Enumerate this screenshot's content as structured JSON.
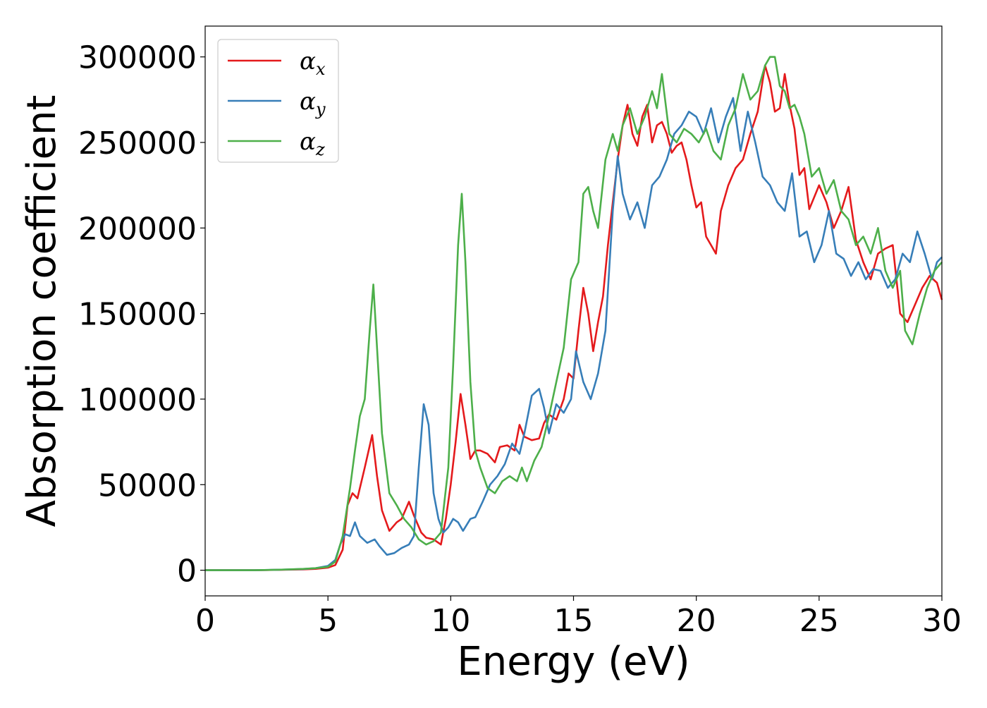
{
  "chart_data": {
    "type": "line",
    "xlabel": "Energy (eV)",
    "ylabel": "Absorption coefficient",
    "xlim": [
      0,
      30
    ],
    "ylim": [
      -15000,
      318000
    ],
    "xticks": [
      0,
      5,
      10,
      15,
      20,
      25,
      30
    ],
    "xtick_labels": [
      "0",
      "5",
      "10",
      "15",
      "20",
      "25",
      "30"
    ],
    "yticks": [
      0,
      50000,
      100000,
      150000,
      200000,
      250000,
      300000
    ],
    "ytick_labels": [
      "0",
      "50000",
      "100000",
      "150000",
      "200000",
      "250000",
      "300000"
    ],
    "grid": false,
    "legend_position": "upper-left",
    "series": [
      {
        "name": "α",
        "subscript": "x",
        "color": "#e41a1c",
        "x": [
          0,
          1,
          2,
          3,
          4,
          4.5,
          5,
          5.3,
          5.6,
          5.8,
          6.0,
          6.2,
          6.5,
          6.8,
          7.0,
          7.2,
          7.5,
          7.8,
          8.0,
          8.3,
          8.5,
          8.8,
          9.0,
          9.3,
          9.6,
          9.8,
          10.0,
          10.2,
          10.4,
          10.6,
          10.8,
          11.0,
          11.2,
          11.5,
          11.8,
          12.0,
          12.3,
          12.6,
          12.8,
          13.0,
          13.3,
          13.6,
          13.8,
          14.0,
          14.3,
          14.6,
          14.8,
          15.0,
          15.2,
          15.4,
          15.6,
          15.8,
          16.0,
          16.2,
          16.4,
          16.6,
          16.8,
          17.0,
          17.2,
          17.4,
          17.6,
          17.8,
          18.0,
          18.2,
          18.4,
          18.6,
          18.8,
          19.0,
          19.2,
          19.4,
          19.6,
          19.8,
          20.0,
          20.2,
          20.4,
          20.6,
          20.8,
          21.0,
          21.3,
          21.6,
          21.9,
          22.2,
          22.5,
          22.8,
          23.0,
          23.2,
          23.4,
          23.6,
          23.8,
          24.0,
          24.2,
          24.4,
          24.6,
          24.8,
          25.0,
          25.3,
          25.6,
          25.9,
          26.2,
          26.5,
          26.8,
          27.1,
          27.4,
          27.7,
          28.0,
          28.3,
          28.6,
          28.9,
          29.2,
          29.5,
          29.8,
          30.0
        ],
        "y": [
          0,
          0,
          0,
          200,
          500,
          800,
          1500,
          3000,
          12000,
          38000,
          45000,
          42000,
          60000,
          79000,
          55000,
          35000,
          23000,
          28000,
          30000,
          40000,
          32000,
          22000,
          19000,
          18000,
          15000,
          30000,
          50000,
          75000,
          103000,
          85000,
          65000,
          70000,
          70000,
          68000,
          63000,
          72000,
          73000,
          70000,
          85000,
          78000,
          76000,
          77000,
          86000,
          91000,
          88000,
          100000,
          115000,
          112000,
          140000,
          165000,
          150000,
          128000,
          145000,
          160000,
          190000,
          215000,
          240000,
          260000,
          272000,
          255000,
          248000,
          265000,
          272000,
          250000,
          260000,
          262000,
          255000,
          244000,
          248000,
          250000,
          240000,
          225000,
          212000,
          215000,
          195000,
          190000,
          185000,
          210000,
          225000,
          235000,
          240000,
          255000,
          268000,
          295000,
          285000,
          268000,
          270000,
          290000,
          272000,
          258000,
          231000,
          235000,
          211000,
          218000,
          225000,
          215000,
          200000,
          210000,
          224000,
          193000,
          180000,
          170000,
          185000,
          188000,
          190000,
          150000,
          145000,
          155000,
          165000,
          172000,
          168000,
          158000
        ]
      },
      {
        "name": "α",
        "subscript": "y",
        "color": "#377eb8",
        "x": [
          0,
          1,
          2,
          3,
          4,
          4.5,
          5,
          5.3,
          5.5,
          5.7,
          5.9,
          6.1,
          6.3,
          6.6,
          6.9,
          7.1,
          7.4,
          7.7,
          8.0,
          8.3,
          8.5,
          8.7,
          8.9,
          9.1,
          9.3,
          9.5,
          9.7,
          9.9,
          10.1,
          10.3,
          10.5,
          10.8,
          11.0,
          11.3,
          11.6,
          11.9,
          12.2,
          12.5,
          12.8,
          13.0,
          13.3,
          13.6,
          13.8,
          14.0,
          14.3,
          14.6,
          14.9,
          15.1,
          15.4,
          15.7,
          16.0,
          16.3,
          16.6,
          16.8,
          17.0,
          17.3,
          17.6,
          17.9,
          18.2,
          18.5,
          18.8,
          19.1,
          19.4,
          19.7,
          20.0,
          20.3,
          20.6,
          20.9,
          21.2,
          21.5,
          21.8,
          22.1,
          22.4,
          22.7,
          23.0,
          23.3,
          23.6,
          23.9,
          24.2,
          24.5,
          24.8,
          25.1,
          25.4,
          25.7,
          26.0,
          26.3,
          26.6,
          26.9,
          27.2,
          27.5,
          27.8,
          28.1,
          28.4,
          28.7,
          29.0,
          29.3,
          29.6,
          29.8,
          30.0
        ],
        "y": [
          0,
          0,
          0,
          300,
          700,
          1200,
          2500,
          6000,
          15000,
          21000,
          20000,
          28000,
          20000,
          16000,
          18000,
          14000,
          9000,
          10000,
          13000,
          15000,
          20000,
          60000,
          97000,
          85000,
          45000,
          30000,
          22000,
          25000,
          30000,
          28000,
          23000,
          30000,
          31000,
          40000,
          50000,
          55000,
          62000,
          74000,
          68000,
          80000,
          102000,
          106000,
          95000,
          80000,
          97000,
          92000,
          100000,
          128000,
          110000,
          100000,
          115000,
          140000,
          210000,
          242000,
          220000,
          205000,
          215000,
          200000,
          225000,
          230000,
          240000,
          255000,
          260000,
          268000,
          265000,
          255000,
          270000,
          250000,
          265000,
          276000,
          245000,
          268000,
          250000,
          230000,
          225000,
          215000,
          210000,
          232000,
          195000,
          198000,
          180000,
          190000,
          210000,
          185000,
          182000,
          172000,
          180000,
          170000,
          176000,
          175000,
          165000,
          170000,
          185000,
          180000,
          198000,
          185000,
          170000,
          180000,
          183000
        ]
      },
      {
        "name": "α",
        "subscript": "z",
        "color": "#4daf4a",
        "x": [
          0,
          1,
          2,
          3,
          4,
          4.5,
          5,
          5.3,
          5.6,
          5.9,
          6.1,
          6.3,
          6.5,
          6.7,
          6.85,
          7.0,
          7.2,
          7.5,
          7.8,
          8.1,
          8.4,
          8.7,
          9.0,
          9.3,
          9.6,
          9.9,
          10.1,
          10.3,
          10.45,
          10.6,
          10.8,
          11.0,
          11.2,
          11.5,
          11.8,
          12.1,
          12.4,
          12.7,
          12.9,
          13.1,
          13.4,
          13.7,
          14.0,
          14.3,
          14.6,
          14.9,
          15.2,
          15.4,
          15.6,
          15.8,
          16.0,
          16.3,
          16.6,
          16.8,
          17.0,
          17.3,
          17.6,
          17.9,
          18.2,
          18.4,
          18.6,
          18.9,
          19.2,
          19.5,
          19.8,
          20.1,
          20.4,
          20.7,
          21.0,
          21.3,
          21.6,
          21.9,
          22.2,
          22.5,
          22.8,
          23.0,
          23.2,
          23.4,
          23.6,
          23.8,
          24.0,
          24.2,
          24.4,
          24.7,
          25.0,
          25.3,
          25.6,
          25.9,
          26.2,
          26.5,
          26.8,
          27.1,
          27.4,
          27.7,
          28.0,
          28.3,
          28.5,
          28.8,
          29.1,
          29.4,
          29.7,
          30.0
        ],
        "y": [
          0,
          0,
          0,
          300,
          800,
          1200,
          2000,
          5000,
          20000,
          48000,
          70000,
          90000,
          100000,
          140000,
          167000,
          130000,
          80000,
          45000,
          38000,
          30000,
          25000,
          18000,
          15000,
          17000,
          22000,
          60000,
          120000,
          190000,
          220000,
          180000,
          110000,
          70000,
          60000,
          48000,
          45000,
          52000,
          55000,
          52000,
          60000,
          52000,
          64000,
          72000,
          90000,
          110000,
          130000,
          170000,
          180000,
          220000,
          224000,
          210000,
          200000,
          240000,
          255000,
          245000,
          260000,
          270000,
          255000,
          265000,
          280000,
          270000,
          290000,
          255000,
          250000,
          258000,
          255000,
          250000,
          258000,
          245000,
          240000,
          260000,
          270000,
          290000,
          275000,
          280000,
          295000,
          300000,
          300000,
          283000,
          280000,
          270000,
          272000,
          265000,
          255000,
          230000,
          235000,
          220000,
          228000,
          210000,
          205000,
          190000,
          195000,
          185000,
          200000,
          175000,
          165000,
          175000,
          140000,
          132000,
          150000,
          165000,
          175000,
          180000
        ]
      }
    ]
  }
}
